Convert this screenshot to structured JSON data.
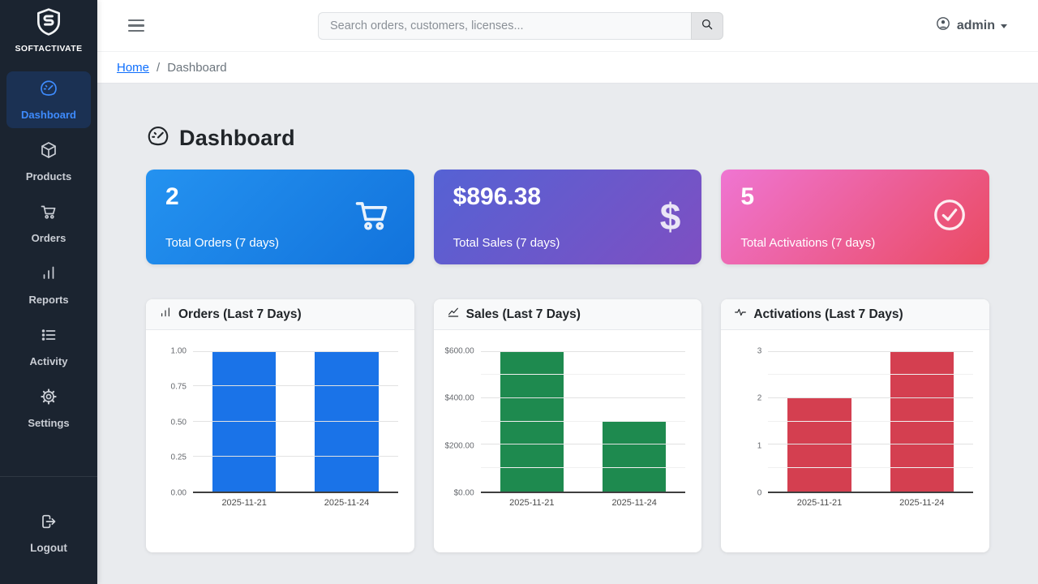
{
  "brand": {
    "name": "SOFTACTIVATE"
  },
  "topbar": {
    "search_placeholder": "Search orders, customers, licenses...",
    "user_label": "admin"
  },
  "breadcrumb": {
    "home": "Home",
    "separator": "/",
    "current": "Dashboard"
  },
  "page": {
    "title": "Dashboard"
  },
  "sidebar": {
    "items": [
      {
        "label": "Dashboard",
        "icon": "speedometer-icon",
        "active": true
      },
      {
        "label": "Products",
        "icon": "box-icon",
        "active": false
      },
      {
        "label": "Orders",
        "icon": "cart-icon",
        "active": false
      },
      {
        "label": "Reports",
        "icon": "bar-chart-icon",
        "active": false
      },
      {
        "label": "Activity",
        "icon": "list-icon",
        "active": false
      },
      {
        "label": "Settings",
        "icon": "gear-icon",
        "active": false
      }
    ],
    "logout_label": "Logout"
  },
  "stats": [
    {
      "value": "2",
      "label": "Total Orders (7 days)",
      "icon": "cart-icon",
      "gradient": [
        "#2492f0",
        "#1273dc"
      ]
    },
    {
      "value": "$896.38",
      "label": "Total Sales (7 days)",
      "icon": "dollar-icon",
      "gradient": [
        "#5562d4",
        "#7e4fc2"
      ],
      "dollar_glyph": "$"
    },
    {
      "value": "5",
      "label": "Total Activations (7 days)",
      "icon": "check-circle-icon",
      "gradient": [
        "#ef75d2",
        "#ea4a61"
      ]
    }
  ],
  "chart_data": [
    {
      "type": "bar",
      "title": "Orders (Last 7 Days)",
      "icon": "bar-chart-icon",
      "categories": [
        "2025-11-21",
        "2025-11-24"
      ],
      "values": [
        1,
        1
      ],
      "ylim": [
        0,
        1
      ],
      "yticks": [
        {
          "label": "1.00",
          "value": 1
        },
        {
          "label": "0.75",
          "value": 0.75
        },
        {
          "label": "0.50",
          "value": 0.5
        },
        {
          "label": "0.25",
          "value": 0.25
        },
        {
          "label": "0.00",
          "value": 0
        }
      ],
      "minor_gridlines": [],
      "bar_color": "#1a73e8",
      "grid": true,
      "legend": false,
      "xlabel": "",
      "ylabel": ""
    },
    {
      "type": "bar",
      "title": "Sales (Last 7 Days)",
      "icon": "line-chart-icon",
      "categories": [
        "2025-11-21",
        "2025-11-24"
      ],
      "values": [
        596.38,
        300
      ],
      "ylim": [
        0,
        600
      ],
      "yticks": [
        {
          "label": "$600.00",
          "value": 600
        },
        {
          "label": "$400.00",
          "value": 400
        },
        {
          "label": "$200.00",
          "value": 200
        },
        {
          "label": "$0.00",
          "value": 0
        }
      ],
      "minor_gridlines": [
        100,
        300,
        500
      ],
      "bar_color": "#1e8a4f",
      "grid": true,
      "legend": false,
      "xlabel": "",
      "ylabel": ""
    },
    {
      "type": "bar",
      "title": "Activations (Last 7 Days)",
      "icon": "activity-icon",
      "categories": [
        "2025-11-21",
        "2025-11-24"
      ],
      "values": [
        2,
        3
      ],
      "ylim": [
        0,
        3
      ],
      "yticks": [
        {
          "label": "3",
          "value": 3
        },
        {
          "label": "2",
          "value": 2
        },
        {
          "label": "1",
          "value": 1
        },
        {
          "label": "0",
          "value": 0
        }
      ],
      "minor_gridlines": [
        0.5,
        1.5,
        2.5
      ],
      "bar_color": "#d43f50",
      "grid": true,
      "legend": false,
      "xlabel": "",
      "ylabel": ""
    }
  ]
}
